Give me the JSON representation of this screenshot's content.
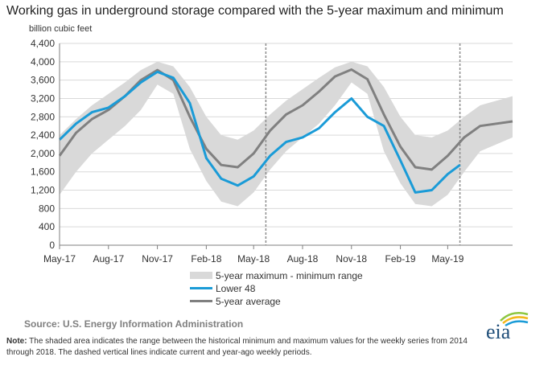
{
  "title": "Working gas in underground  storage compared with the 5-year maximum and minimum",
  "source": "Source:  U.S. Energy Information Administration",
  "note_label": "Note:",
  "note_text": " The shaded area indicates the range between the historical minimum and maximum values for the weekly series from 2014 through 2018. The dashed vertical lines indicate current and year-ago weekly periods.",
  "logo_text": "eia",
  "colors": {
    "band": "#d9d9d9",
    "lower48": "#1a9bd7",
    "average": "#808080",
    "grid": "#d9d9d9",
    "dashed": "#8c8c8c"
  },
  "chart_data": {
    "type": "line",
    "title": "Working gas in underground  storage compared with the 5-year maximum and minimum",
    "ylabel": "billion cubic feet",
    "ylim": [
      0,
      4400
    ],
    "yticks": [
      0,
      400,
      800,
      1200,
      1600,
      2000,
      2400,
      2800,
      3200,
      3600,
      4000,
      4400
    ],
    "ytick_labels": [
      "0",
      "400",
      "800",
      "1,200",
      "1,600",
      "2,000",
      "2,400",
      "2,800",
      "3,200",
      "3,600",
      "4,000",
      "4,400"
    ],
    "xlim": [
      "2017-05-01",
      "2019-08-31"
    ],
    "xticks": [
      "2017-05-01",
      "2017-08-01",
      "2017-11-01",
      "2018-02-01",
      "2018-05-01",
      "2018-08-01",
      "2018-11-01",
      "2019-02-01",
      "2019-05-01"
    ],
    "xtick_labels": [
      "May-17",
      "Aug-17",
      "Nov-17",
      "Feb-18",
      "May-18",
      "Aug-18",
      "Nov-18",
      "Feb-19",
      "May-19"
    ],
    "grid": "horizontal",
    "legend_position": "bottom-left",
    "reference_lines": [
      "2018-05-24",
      "2019-05-24"
    ],
    "series": [
      {
        "name": "5-year maximum - minimum range",
        "style": "band",
        "x": [
          "2017-05-01",
          "2017-06-01",
          "2017-07-01",
          "2017-08-01",
          "2017-09-01",
          "2017-10-01",
          "2017-11-01",
          "2017-12-01",
          "2018-01-01",
          "2018-02-01",
          "2018-03-01",
          "2018-04-01",
          "2018-05-01",
          "2018-06-01",
          "2018-07-01",
          "2018-08-01",
          "2018-09-01",
          "2018-10-01",
          "2018-11-01",
          "2018-12-01",
          "2019-01-01",
          "2019-02-01",
          "2019-03-01",
          "2019-04-01",
          "2019-05-01",
          "2019-06-01",
          "2019-07-01",
          "2019-08-31"
        ],
        "upper": [
          2400,
          2750,
          3050,
          3300,
          3550,
          3820,
          4000,
          3900,
          3450,
          2800,
          2400,
          2300,
          2500,
          2850,
          3150,
          3400,
          3650,
          3880,
          4000,
          3900,
          3450,
          2800,
          2400,
          2350,
          2500,
          2800,
          3050,
          3250
        ],
        "lower": [
          1100,
          1600,
          2000,
          2300,
          2600,
          2950,
          3500,
          3300,
          2100,
          1400,
          950,
          850,
          1150,
          1650,
          2050,
          2350,
          2650,
          3050,
          3550,
          3300,
          2050,
          1350,
          900,
          850,
          1100,
          1600,
          2050,
          2350
        ]
      },
      {
        "name": "Lower 48",
        "style": "line",
        "x": [
          "2017-05-01",
          "2017-06-01",
          "2017-07-01",
          "2017-08-01",
          "2017-09-01",
          "2017-10-01",
          "2017-11-01",
          "2017-12-01",
          "2018-01-01",
          "2018-02-01",
          "2018-03-01",
          "2018-04-01",
          "2018-05-01",
          "2018-06-01",
          "2018-07-01",
          "2018-08-01",
          "2018-09-01",
          "2018-10-01",
          "2018-11-01",
          "2018-12-01",
          "2019-01-01",
          "2019-02-01",
          "2019-03-01",
          "2019-04-01",
          "2019-05-01",
          "2019-05-24"
        ],
        "y": [
          2300,
          2650,
          2900,
          3000,
          3250,
          3550,
          3780,
          3650,
          3100,
          1900,
          1450,
          1300,
          1500,
          1950,
          2250,
          2350,
          2550,
          2900,
          3200,
          2800,
          2600,
          1850,
          1150,
          1200,
          1550,
          1750
        ]
      },
      {
        "name": "5-year average",
        "style": "line",
        "x": [
          "2017-05-01",
          "2017-06-01",
          "2017-07-01",
          "2017-08-01",
          "2017-09-01",
          "2017-10-01",
          "2017-11-01",
          "2017-12-01",
          "2018-01-01",
          "2018-02-01",
          "2018-03-01",
          "2018-04-01",
          "2018-05-01",
          "2018-06-01",
          "2018-07-01",
          "2018-08-01",
          "2018-09-01",
          "2018-10-01",
          "2018-11-01",
          "2018-12-01",
          "2019-01-01",
          "2019-02-01",
          "2019-03-01",
          "2019-04-01",
          "2019-05-01",
          "2019-06-01",
          "2019-07-01",
          "2019-08-31"
        ],
        "y": [
          1950,
          2450,
          2750,
          2950,
          3250,
          3600,
          3820,
          3600,
          2800,
          2100,
          1750,
          1700,
          2000,
          2500,
          2850,
          3050,
          3350,
          3680,
          3830,
          3620,
          2850,
          2150,
          1700,
          1650,
          1950,
          2350,
          2600,
          2700
        ]
      }
    ]
  }
}
